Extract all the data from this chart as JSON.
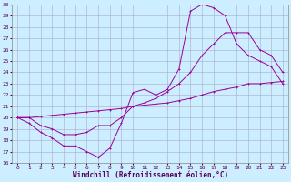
{
  "xlabel": "Windchill (Refroidissement éolien,°C)",
  "bg_color": "#cceeff",
  "grid_color": "#aaaacc",
  "line_color": "#990099",
  "xlim": [
    -0.5,
    23.5
  ],
  "ylim": [
    16,
    30
  ],
  "xticks": [
    0,
    1,
    2,
    3,
    4,
    5,
    6,
    7,
    8,
    9,
    10,
    11,
    12,
    13,
    14,
    15,
    16,
    17,
    18,
    19,
    20,
    21,
    22,
    23
  ],
  "yticks": [
    16,
    17,
    18,
    19,
    20,
    21,
    22,
    23,
    24,
    25,
    26,
    27,
    28,
    29,
    30
  ],
  "line1_x": [
    0,
    1,
    2,
    3,
    4,
    5,
    6,
    7,
    8,
    9,
    10,
    11,
    12,
    13,
    14,
    15,
    16,
    17,
    18,
    19,
    20,
    21,
    22,
    23
  ],
  "line1_y": [
    20,
    19.5,
    18.7,
    18.2,
    17.5,
    17.5,
    17.0,
    16.5,
    17.3,
    19.5,
    22.2,
    22.5,
    22.0,
    22.5,
    24.3,
    29.4,
    30.0,
    29.7,
    29.0,
    26.5,
    25.5,
    25.0,
    24.5,
    23.0
  ],
  "line2_x": [
    0,
    1,
    2,
    3,
    4,
    5,
    6,
    7,
    8,
    9,
    10,
    11,
    12,
    13,
    14,
    15,
    16,
    17,
    18,
    19,
    20,
    21,
    22,
    23
  ],
  "line2_y": [
    20,
    20.0,
    19.3,
    19.0,
    18.5,
    18.5,
    18.7,
    19.3,
    19.3,
    20.0,
    21.0,
    21.3,
    21.7,
    22.3,
    23.0,
    24.0,
    25.5,
    26.5,
    27.5,
    27.5,
    27.5,
    26.0,
    25.5,
    24.0
  ],
  "line3_x": [
    0,
    1,
    2,
    3,
    4,
    5,
    6,
    7,
    8,
    9,
    10,
    11,
    12,
    13,
    14,
    15,
    16,
    17,
    18,
    19,
    20,
    21,
    22,
    23
  ],
  "line3_y": [
    20,
    20.0,
    20.1,
    20.2,
    20.3,
    20.4,
    20.5,
    20.6,
    20.7,
    20.8,
    21.0,
    21.1,
    21.2,
    21.3,
    21.5,
    21.7,
    22.0,
    22.3,
    22.5,
    22.7,
    23.0,
    23.0,
    23.1,
    23.2
  ]
}
